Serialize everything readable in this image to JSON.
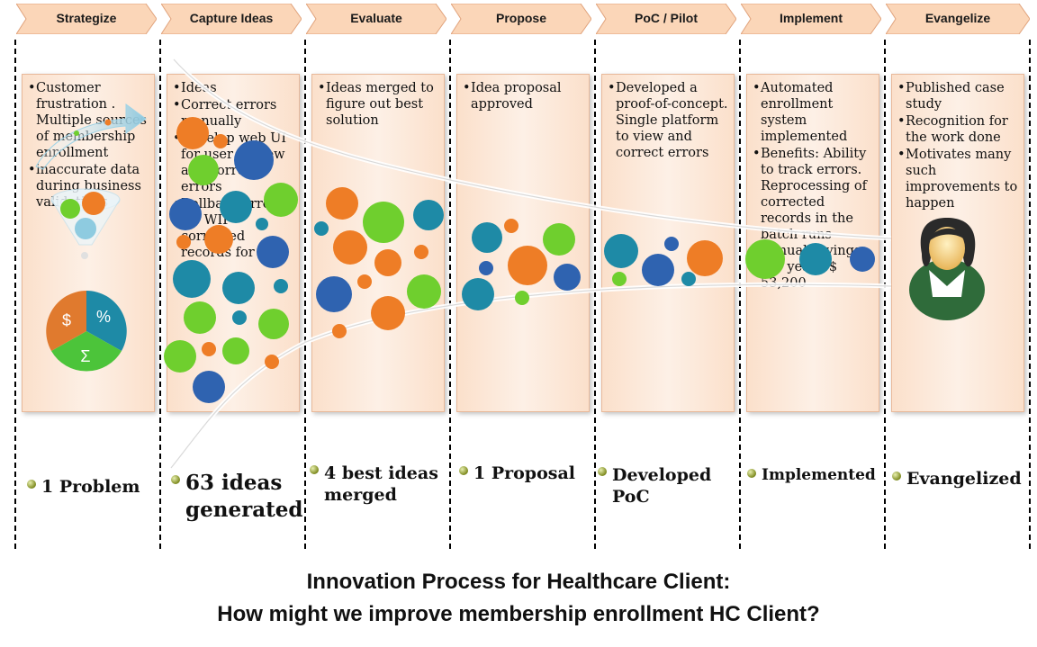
{
  "phases": [
    {
      "label": "Strategize",
      "bullets": [
        "Customer frustration . Multiple sources of membership enrollment",
        "inaccurate data during business validations"
      ],
      "outcome": "1 Problem"
    },
    {
      "label": "Capture Ideas",
      "bullets": [
        "Ideas",
        "Correct errors manually",
        "Develop web UI for user to view and correct errors",
        "Rollback errors for WIP corrected records for"
      ],
      "outcome": "63 ideas generated"
    },
    {
      "label": "Evaluate",
      "bullets": [
        "Ideas merged to figure out best solution"
      ],
      "outcome": "4 best ideas merged"
    },
    {
      "label": "Propose",
      "bullets": [
        "Idea  proposal approved"
      ],
      "outcome": "1 Proposal"
    },
    {
      "label": "PoC / Pilot",
      "bullets": [
        "Developed a proof-of-concept. Single platform to view and correct errors"
      ],
      "outcome": "Developed PoC"
    },
    {
      "label": "Implement",
      "bullets": [
        "Automated enrollment system implemented",
        "Benefits: Ability to track  errors. Reprocessing of corrected records in the batch runs Annual savings per year : $ 53,200"
      ],
      "outcome": "Implemented"
    },
    {
      "label": "Evangelize",
      "bullets": [
        "Published case study",
        "Recognition for the work done",
        "Motivates many such improvements to happen"
      ],
      "outcome": "Evangelized"
    }
  ],
  "pie": {
    "labels": [
      "$",
      "%",
      "Σ"
    ]
  },
  "caption": {
    "line1": "Innovation Process for Healthcare Client:",
    "line2": "How might we improve  membership enrollment HC Client?"
  },
  "colors": {
    "orange": "#ee7d26",
    "green": "#6fcf2e",
    "blue": "#2f63b0",
    "teal": "#1e8aa6",
    "arrow_fill": "#fbd6b8",
    "card_border": "#e8b99a"
  }
}
